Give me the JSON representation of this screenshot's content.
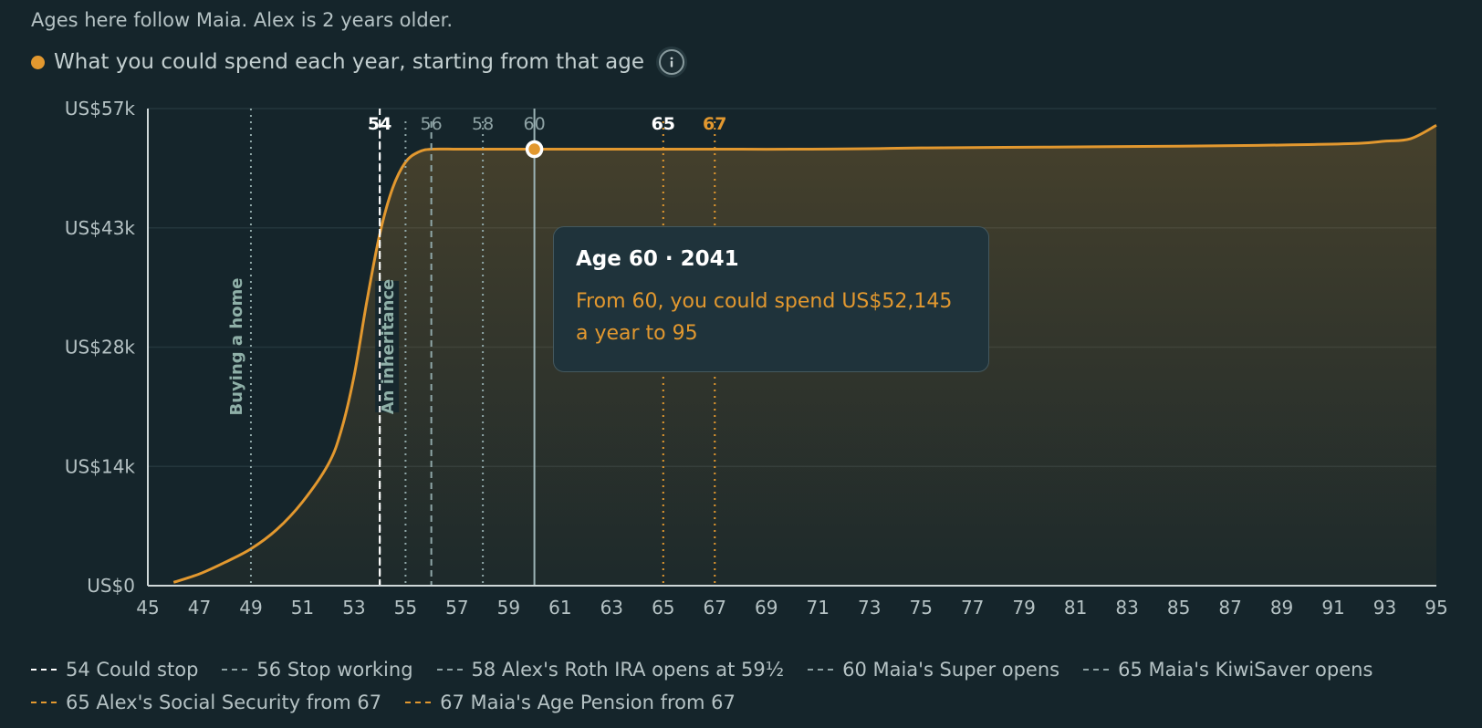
{
  "header": {
    "note": "Ages here follow Maia. Alex is 2 years older.",
    "series_label": "What you could spend each year, starting from that age",
    "info_icon": "info-icon"
  },
  "colors": {
    "background": "#15252b",
    "accent": "#e2982f",
    "white_marker": "#ffffff",
    "grey_marker": "#8fa7a8",
    "grid": "#24363c",
    "axis": "#cfd8d9"
  },
  "tooltip": {
    "title": "Age 60 · 2041",
    "body": "From 60, you could spend US$52,145 a year to 95"
  },
  "chart_data": {
    "type": "area",
    "x_axis": {
      "range": [
        45,
        95
      ],
      "ticks": [
        45,
        47,
        49,
        51,
        53,
        55,
        57,
        59,
        61,
        63,
        65,
        67,
        69,
        71,
        73,
        75,
        77,
        79,
        81,
        83,
        85,
        87,
        89,
        91,
        93,
        95
      ]
    },
    "y_axis": {
      "range": [
        0,
        57000
      ],
      "ticks": [
        0,
        14250,
        28500,
        42750,
        57000
      ],
      "tick_labels": [
        "US$0",
        "US$14k",
        "US$28k",
        "US$43k",
        "US$57k"
      ]
    },
    "grid": true,
    "series": [
      {
        "name": "What you could spend each year, starting from that age",
        "x": [
          46,
          47,
          48,
          49,
          50,
          51,
          52,
          52.5,
          53,
          53.5,
          54,
          54.5,
          55,
          55.5,
          56,
          57,
          58,
          59,
          60,
          62,
          65,
          68,
          70,
          73,
          75,
          80,
          85,
          88,
          90,
          92,
          93,
          94,
          95
        ],
        "y": [
          400,
          1400,
          2800,
          4400,
          6700,
          10000,
          14500,
          18500,
          25000,
          34000,
          42000,
          47500,
          50600,
          51800,
          52145,
          52145,
          52145,
          52145,
          52145,
          52145,
          52145,
          52145,
          52145,
          52200,
          52300,
          52400,
          52500,
          52600,
          52700,
          52850,
          53100,
          53400,
          55000
        ]
      }
    ],
    "selected": {
      "x": 60,
      "y": 52145
    },
    "event_lines": [
      {
        "x": 49,
        "label": "Buying a home",
        "style": "dotted",
        "color": "grey"
      },
      {
        "x": 54,
        "label": "An inheritance",
        "style": "dashed",
        "color": "white"
      }
    ],
    "milestone_lines": [
      {
        "x": 54,
        "label": "54",
        "style": "dashed",
        "color": "white"
      },
      {
        "x": 55,
        "label": "",
        "style": "dotted",
        "color": "grey"
      },
      {
        "x": 56,
        "label": "56",
        "style": "dashed",
        "color": "grey"
      },
      {
        "x": 58,
        "label": "58",
        "style": "dotted",
        "color": "grey"
      },
      {
        "x": 60,
        "label": "60",
        "style": "solid",
        "color": "grey"
      },
      {
        "x": 65,
        "label": "65",
        "style": "dotted",
        "color": "accent",
        "label_color": "white"
      },
      {
        "x": 67,
        "label": "67",
        "style": "dotted",
        "color": "accent",
        "label_color": "accent"
      }
    ],
    "legend_placement": "bottom"
  },
  "legend": [
    {
      "text": "54 Could stop",
      "color": "#ffffff"
    },
    {
      "text": "56 Stop working",
      "color": "#8fa7a8"
    },
    {
      "text": "58 Alex's Roth IRA opens at 59½",
      "color": "#8fa7a8"
    },
    {
      "text": "60 Maia's Super opens",
      "color": "#8fa7a8"
    },
    {
      "text": "65 Maia's KiwiSaver opens",
      "color": "#8fa7a8"
    },
    {
      "text": "65 Alex's Social Security from 67",
      "color": "#e2982f"
    },
    {
      "text": "67 Maia's Age Pension from 67",
      "color": "#e2982f"
    }
  ]
}
